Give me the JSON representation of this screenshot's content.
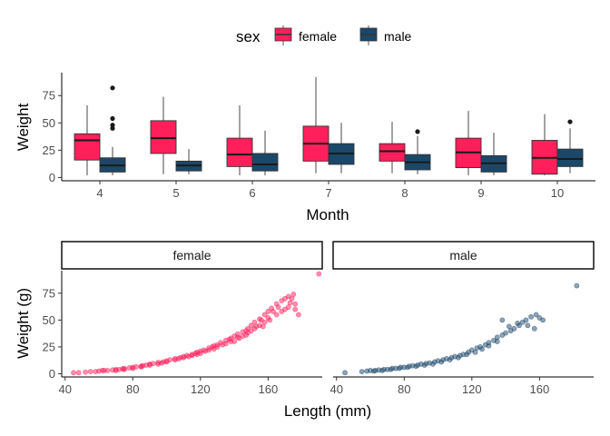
{
  "colors": {
    "female": "#FF1F5B",
    "male": "#1B4869"
  },
  "legend": {
    "title": "sex",
    "entries": [
      {
        "key": "female",
        "label": "female"
      },
      {
        "key": "male",
        "label": "male"
      }
    ]
  },
  "chart_data": [
    {
      "type": "boxplot",
      "xlabel": "Month",
      "ylabel": "Weight",
      "categories": [
        "4",
        "5",
        "6",
        "7",
        "8",
        "9",
        "10"
      ],
      "ylim": [
        -3,
        96
      ],
      "yticks": [
        0,
        25,
        50,
        75
      ],
      "series": [
        {
          "name": "female",
          "boxes": [
            {
              "min": 2,
              "q1": 16,
              "median": 34,
              "q3": 40,
              "max": 66,
              "outliers": []
            },
            {
              "min": 3,
              "q1": 22,
              "median": 36,
              "q3": 52,
              "max": 74,
              "outliers": []
            },
            {
              "min": 2,
              "q1": 10,
              "median": 21,
              "q3": 36,
              "max": 66,
              "outliers": []
            },
            {
              "min": 4,
              "q1": 15,
              "median": 31,
              "q3": 47,
              "max": 92,
              "outliers": []
            },
            {
              "min": 4,
              "q1": 15,
              "median": 24,
              "q3": 31,
              "max": 51,
              "outliers": []
            },
            {
              "min": 2,
              "q1": 9,
              "median": 23,
              "q3": 36,
              "max": 61,
              "outliers": []
            },
            {
              "min": 2,
              "q1": 3,
              "median": 18,
              "q3": 34,
              "max": 58,
              "outliers": []
            }
          ]
        },
        {
          "name": "male",
          "boxes": [
            {
              "min": 2,
              "q1": 5,
              "median": 11,
              "q3": 18,
              "max": 28,
              "outliers": [
                45,
                48,
                54,
                82
              ]
            },
            {
              "min": 3,
              "q1": 6,
              "median": 11,
              "q3": 15,
              "max": 26,
              "outliers": []
            },
            {
              "min": 2,
              "q1": 6,
              "median": 12,
              "q3": 22,
              "max": 43,
              "outliers": []
            },
            {
              "min": 4,
              "q1": 12,
              "median": 22,
              "q3": 31,
              "max": 50,
              "outliers": []
            },
            {
              "min": 3,
              "q1": 7,
              "median": 14,
              "q3": 21,
              "max": 38,
              "outliers": [
                42
              ]
            },
            {
              "min": 2,
              "q1": 5,
              "median": 13,
              "q3": 20,
              "max": 41,
              "outliers": []
            },
            {
              "min": 4,
              "q1": 10,
              "median": 17,
              "q3": 26,
              "max": 45,
              "outliers": [
                51
              ]
            }
          ]
        }
      ]
    },
    {
      "type": "scatter",
      "xlabel": "Length (mm)",
      "ylabel": "Weight (g)",
      "facets": [
        "female",
        "male"
      ],
      "xlim": [
        38,
        192
      ],
      "ylim": [
        -3,
        96
      ],
      "xticks": [
        40,
        80,
        120,
        160
      ],
      "yticks": [
        0,
        25,
        50,
        75
      ],
      "series": [
        {
          "name": "female",
          "points": [
            [
              45,
              1
            ],
            [
              48,
              1
            ],
            [
              52,
              1.5
            ],
            [
              55,
              2
            ],
            [
              58,
              2
            ],
            [
              60,
              2.5
            ],
            [
              63,
              3
            ],
            [
              65,
              3
            ],
            [
              68,
              3.5
            ],
            [
              70,
              4
            ],
            [
              72,
              4
            ],
            [
              75,
              5
            ],
            [
              78,
              5.5
            ],
            [
              80,
              6
            ],
            [
              82,
              6.5
            ],
            [
              85,
              7
            ],
            [
              88,
              8
            ],
            [
              90,
              9
            ],
            [
              92,
              9.5
            ],
            [
              95,
              10.5
            ],
            [
              98,
              11
            ],
            [
              100,
              12
            ],
            [
              102,
              13
            ],
            [
              105,
              14
            ],
            [
              108,
              15
            ],
            [
              110,
              16
            ],
            [
              112,
              17
            ],
            [
              115,
              18
            ],
            [
              118,
              20
            ],
            [
              120,
              21
            ],
            [
              122,
              22
            ],
            [
              125,
              24
            ],
            [
              128,
              26
            ],
            [
              130,
              27
            ],
            [
              132,
              29
            ],
            [
              135,
              31
            ],
            [
              138,
              33
            ],
            [
              140,
              35
            ],
            [
              142,
              37
            ],
            [
              145,
              39
            ],
            [
              148,
              42
            ],
            [
              150,
              45
            ],
            [
              152,
              48
            ],
            [
              155,
              51
            ],
            [
              158,
              55
            ],
            [
              160,
              58
            ],
            [
              162,
              61
            ],
            [
              165,
              65
            ],
            [
              168,
              68
            ],
            [
              170,
              70
            ],
            [
              172,
              72
            ],
            [
              175,
              74
            ],
            [
              62,
              3
            ],
            [
              74,
              4.5
            ],
            [
              86,
              7.5
            ],
            [
              97,
              10
            ],
            [
              107,
              14
            ],
            [
              117,
              19
            ],
            [
              127,
              25
            ],
            [
              137,
              32
            ],
            [
              147,
              40
            ],
            [
              156,
              50
            ],
            [
              166,
              62
            ],
            [
              176,
              60
            ],
            [
              178,
              55
            ],
            [
              176,
              65
            ],
            [
              170,
              60
            ],
            [
              160,
              52
            ],
            [
              150,
              40
            ],
            [
              145,
              35
            ],
            [
              140,
              30
            ],
            [
              135,
              28
            ],
            [
              130,
              25
            ],
            [
              125,
              22
            ],
            [
              120,
              19
            ],
            [
              115,
              17
            ],
            [
              110,
              15
            ],
            [
              105,
              13
            ],
            [
              100,
              11
            ],
            [
              95,
              9
            ],
            [
              90,
              8
            ],
            [
              85,
              6.5
            ],
            [
              80,
              5
            ],
            [
              75,
              4
            ],
            [
              70,
              3
            ],
            [
              155,
              45
            ],
            [
              158,
              48
            ],
            [
              152,
              42
            ],
            [
              148,
              38
            ],
            [
              143,
              33
            ],
            [
              138,
              30
            ],
            [
              133,
              27
            ],
            [
              128,
              23
            ],
            [
              123,
              21
            ],
            [
              118,
              18
            ],
            [
              113,
              16
            ],
            [
              165,
              55
            ],
            [
              168,
              58
            ],
            [
              172,
              62
            ],
            [
              174,
              70
            ],
            [
              173,
              66
            ],
            [
              163,
              58
            ],
            [
              161,
              50
            ],
            [
              157,
              44
            ],
            [
              153,
              44
            ],
            [
              147,
              36
            ],
            [
              142,
              34
            ],
            [
              190,
              93
            ]
          ]
        },
        {
          "name": "male",
          "points": [
            [
              45,
              1
            ],
            [
              55,
              2
            ],
            [
              58,
              2.5
            ],
            [
              60,
              3
            ],
            [
              63,
              3
            ],
            [
              65,
              3.5
            ],
            [
              68,
              4
            ],
            [
              70,
              4
            ],
            [
              73,
              5
            ],
            [
              75,
              5
            ],
            [
              78,
              6
            ],
            [
              80,
              6
            ],
            [
              83,
              7
            ],
            [
              85,
              7.5
            ],
            [
              88,
              8
            ],
            [
              90,
              9
            ],
            [
              93,
              9.5
            ],
            [
              95,
              10
            ],
            [
              98,
              11
            ],
            [
              100,
              12
            ],
            [
              103,
              13
            ],
            [
              105,
              14
            ],
            [
              108,
              15
            ],
            [
              110,
              16
            ],
            [
              113,
              17
            ],
            [
              115,
              18
            ],
            [
              118,
              20
            ],
            [
              120,
              22
            ],
            [
              123,
              24
            ],
            [
              125,
              25
            ],
            [
              128,
              27
            ],
            [
              130,
              29
            ],
            [
              133,
              31
            ],
            [
              135,
              34
            ],
            [
              138,
              36
            ],
            [
              140,
              38
            ],
            [
              143,
              40
            ],
            [
              145,
              42
            ],
            [
              148,
              45
            ],
            [
              150,
              48
            ],
            [
              152,
              50
            ],
            [
              155,
              53
            ],
            [
              158,
              55
            ],
            [
              160,
              52
            ],
            [
              162,
              50
            ],
            [
              138,
              50
            ],
            [
              142,
              44
            ],
            [
              147,
              47
            ],
            [
              153,
              45
            ],
            [
              157,
              42
            ],
            [
              135,
              30
            ],
            [
              130,
              26
            ],
            [
              126,
              23
            ],
            [
              122,
              20
            ],
            [
              117,
              18
            ],
            [
              112,
              15
            ],
            [
              107,
              13
            ],
            [
              102,
              11
            ],
            [
              97,
              9
            ],
            [
              92,
              8
            ],
            [
              87,
              7
            ],
            [
              82,
              6
            ],
            [
              77,
              5
            ],
            [
              72,
              4
            ],
            [
              67,
              3
            ],
            [
              62,
              2.5
            ],
            [
              182,
              82
            ]
          ]
        }
      ]
    }
  ]
}
